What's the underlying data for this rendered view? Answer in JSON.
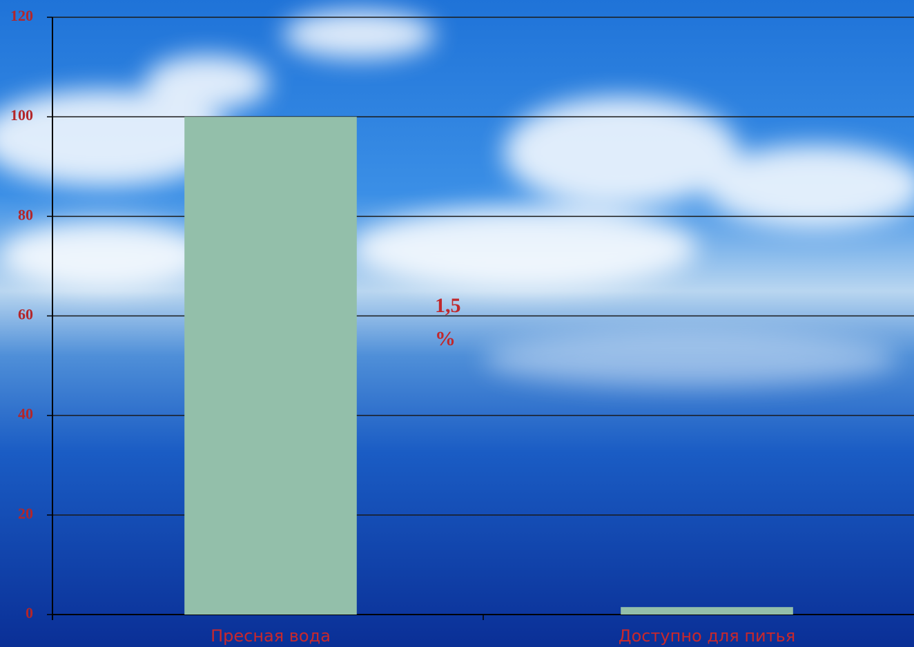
{
  "chart_data": {
    "type": "bar",
    "categories": [
      "Пресная вода",
      "Доступно для питья"
    ],
    "values": [
      100,
      1.5
    ],
    "color": "#93bfaa",
    "annotation": "1,5 %",
    "ylim": [
      0,
      120
    ],
    "yticks": [
      0,
      20,
      40,
      60,
      80,
      100,
      120
    ],
    "grid": true
  }
}
